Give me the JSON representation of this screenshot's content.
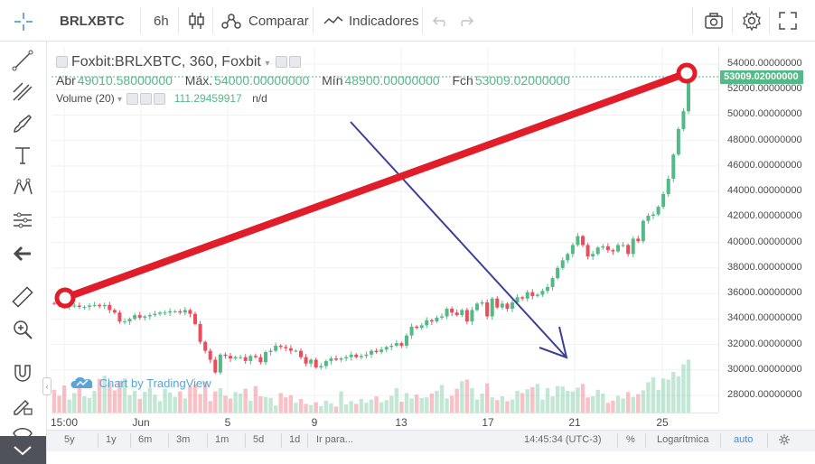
{
  "toolbar": {
    "symbol": "BRLXBTC",
    "interval": "6h",
    "compare_label": "Comparar",
    "indicators_label": "Indicadores"
  },
  "legend": {
    "title": "Foxbit:BRLXBTC, 360, Foxbit",
    "open_label": "Abr",
    "open_value": "49010.58000000",
    "high_label": "Máx.",
    "high_value": "54000.00000000",
    "low_label": "Mín",
    "low_value": "48900.00000000",
    "close_label": "Fch",
    "close_value": "53009.02000000",
    "volume_label": "Volume (20)",
    "volume_value": "111.29459917",
    "volume_na": "n/d"
  },
  "watermark": "Chart by TradingView",
  "price_axis": {
    "current": "53009.02000000",
    "labels": [
      "54000.00000000",
      "52000.00000000",
      "50000.00000000",
      "48000.00000000",
      "46000.00000000",
      "44000.00000000",
      "42000.00000000",
      "40000.00000000",
      "38000.00000000",
      "36000.00000000",
      "34000.00000000",
      "32000.00000000",
      "30000.00000000",
      "28000.00000000"
    ]
  },
  "time_axis": [
    "15:00",
    "Jun",
    "5",
    "9",
    "13",
    "17",
    "21",
    "25"
  ],
  "bottom_bar": {
    "ranges": [
      "5y",
      "1y",
      "6m",
      "3m",
      "1m",
      "5d",
      "1d"
    ],
    "goto": "Ir para...",
    "clock": "14:45:34 (UTC-3)",
    "percent": "%",
    "log": "Logarítmica",
    "auto": "auto"
  },
  "colors": {
    "up": "#53b987",
    "down": "#eb4d5c",
    "drawing_red": "#e11d2a",
    "drawing_blue": "#3b3f97"
  },
  "chart_data": {
    "type": "candlestick",
    "ylim": [
      27000,
      55000
    ],
    "closes": [
      35200,
      35100,
      35000,
      35000,
      35050,
      34950,
      34950,
      35050,
      35100,
      35000,
      35100,
      34700,
      34500,
      33800,
      33800,
      34000,
      34300,
      34100,
      34200,
      34300,
      34400,
      34500,
      34500,
      34600,
      34600,
      34500,
      34700,
      34400,
      33600,
      32200,
      31500,
      30800,
      29800,
      31200,
      31100,
      30900,
      31000,
      31000,
      30700,
      31100,
      31000,
      30600,
      31400,
      31500,
      31900,
      31800,
      31700,
      31500,
      31500,
      31000,
      30500,
      30800,
      30200,
      30300,
      30700,
      30900,
      30800,
      30900,
      31000,
      31200,
      31000,
      31100,
      31200,
      31500,
      31400,
      31600,
      31800,
      31900,
      32100,
      31900,
      32700,
      33400,
      33300,
      33500,
      33900,
      33800,
      34100,
      34200,
      34800,
      34500,
      34300,
      34700,
      33800,
      34700,
      35200,
      35300,
      34200,
      35600,
      34900,
      35200,
      34800,
      35300,
      35700,
      35600,
      36100,
      35800,
      35900,
      36200,
      36500,
      37200,
      38000,
      38600,
      39100,
      39800,
      40500,
      39800,
      38900,
      39100,
      39600,
      39700,
      39400,
      39300,
      39800,
      39800,
      39100,
      40300,
      40100,
      41700,
      42100,
      42200,
      42800,
      43800,
      45000,
      46900,
      48900,
      50300,
      53009
    ],
    "volumes": [
      4.2,
      3.1,
      5.0,
      2.4,
      3.6,
      4.8,
      3.0,
      2.7,
      4.0,
      6.2,
      6.8,
      5.5,
      4.1,
      5.9,
      6.3,
      3.2,
      4.0,
      2.5,
      3.8,
      4.6,
      3.3,
      2.1,
      4.4,
      3.7,
      2.9,
      3.9,
      2.6,
      4.8,
      5.2,
      3.4,
      5.7,
      2.1,
      3.9,
      4.5,
      3.1,
      2.6,
      3.8,
      3.5,
      4.4,
      2.2,
      4.9,
      3.0,
      2.9,
      2.7,
      1.3,
      3.6,
      2.8,
      3.2,
      1.8,
      2.5,
      1.6,
      1.4,
      1.9,
      1.2,
      2.2,
      1.7,
      1.1,
      3.9,
      1.5,
      2.1,
      1.6,
      2.5,
      1.8,
      2.4,
      3.0,
      1.9,
      2.3,
      3.1,
      4.5,
      2.0,
      3.6,
      2.6,
      3.3,
      2.7,
      2.8,
      3.5,
      4.0,
      5.1,
      2.6,
      3.1,
      4.4,
      5.8,
      6.1,
      4.5,
      2.4,
      3.5,
      5.4,
      2.8,
      2.3,
      3.0,
      2.1,
      2.4,
      4.0,
      3.6,
      4.3,
      4.7,
      5.3,
      2.4,
      4.5,
      3.0,
      4.9,
      4.8,
      4.0,
      3.9,
      4.6,
      5.3,
      2.8,
      3.0,
      4.2,
      3.5,
      1.8,
      2.2,
      3.1,
      2.6,
      3.8,
      2.9,
      3.4,
      4.1,
      5.6,
      6.5,
      4.2,
      6.3,
      6.1,
      7.5,
      6.7,
      8.9,
      9.8
    ]
  }
}
